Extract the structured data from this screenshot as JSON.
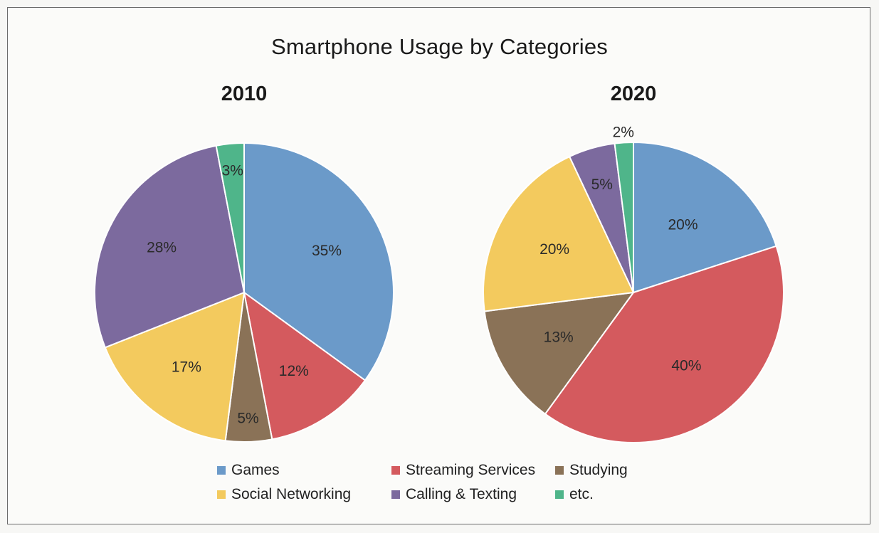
{
  "chart_data": {
    "type": "pie",
    "title": "Smartphone Usage by Categories",
    "categories": [
      "Games",
      "Streaming Services",
      "Studying",
      "Social Networking",
      "Calling & Texting",
      "etc."
    ],
    "colors": [
      "#6b9ac9",
      "#d45a5e",
      "#8a7257",
      "#f3ca5e",
      "#7c6a9e",
      "#4fb58a"
    ],
    "legend_position": "bottom",
    "pies": [
      {
        "title": "2010",
        "values": [
          35,
          12,
          5,
          17,
          28,
          3
        ],
        "labels": [
          "35%",
          "12%",
          "5%",
          "17%",
          "28%",
          "3%"
        ]
      },
      {
        "title": "2020",
        "values": [
          20,
          40,
          13,
          20,
          5,
          2
        ],
        "labels": [
          "20%",
          "40%",
          "13%",
          "20%",
          "5%",
          "2%"
        ]
      }
    ]
  }
}
